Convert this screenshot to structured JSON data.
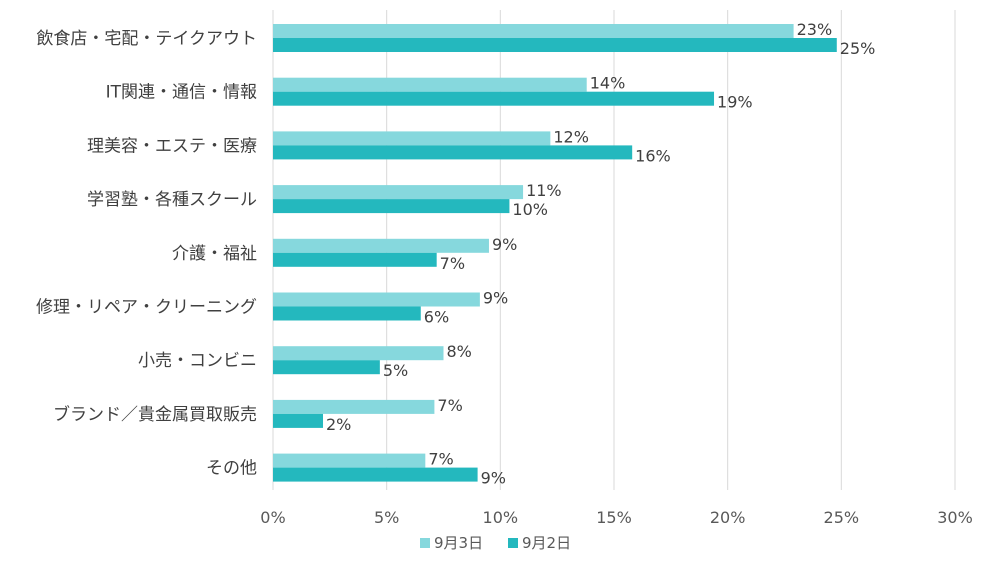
{
  "chart_data": {
    "type": "bar",
    "orientation": "horizontal",
    "title": "",
    "xlabel": "",
    "ylabel": "",
    "xlim": [
      0,
      30
    ],
    "x_ticks": [
      "0%",
      "5%",
      "10%",
      "15%",
      "20%",
      "25%",
      "30%"
    ],
    "categories": [
      "飲食店・宅配・テイクアウト",
      "IT関連・通信・情報",
      "理美容・エステ・医療",
      "学習塾・各種スクール",
      "介護・福祉",
      "修理・リペア・クリーニング",
      "小売・コンビニ",
      "ブランド／貴金属買取販売",
      "その他"
    ],
    "series": [
      {
        "name": "9月3日",
        "color": "#86d8dd",
        "values": [
          23,
          14,
          12,
          11,
          9,
          9,
          8,
          7,
          7
        ],
        "labels": [
          "23%",
          "14%",
          "12%",
          "11%",
          "9%",
          "9%",
          "8%",
          "7%",
          "7%"
        ],
        "bar_values": [
          22.9,
          13.8,
          12.2,
          11.0,
          9.5,
          9.1,
          7.5,
          7.1,
          6.7
        ]
      },
      {
        "name": "9月2日",
        "color": "#24b8be",
        "values": [
          25,
          19,
          16,
          10,
          7,
          6,
          5,
          2,
          9
        ],
        "labels": [
          "25%",
          "19%",
          "16%",
          "10%",
          "7%",
          "6%",
          "5%",
          "2%",
          "9%"
        ],
        "bar_values": [
          24.8,
          19.4,
          15.8,
          10.4,
          7.2,
          6.5,
          4.7,
          2.2,
          9.0
        ]
      }
    ],
    "grid": true,
    "legend_position": "bottom"
  }
}
